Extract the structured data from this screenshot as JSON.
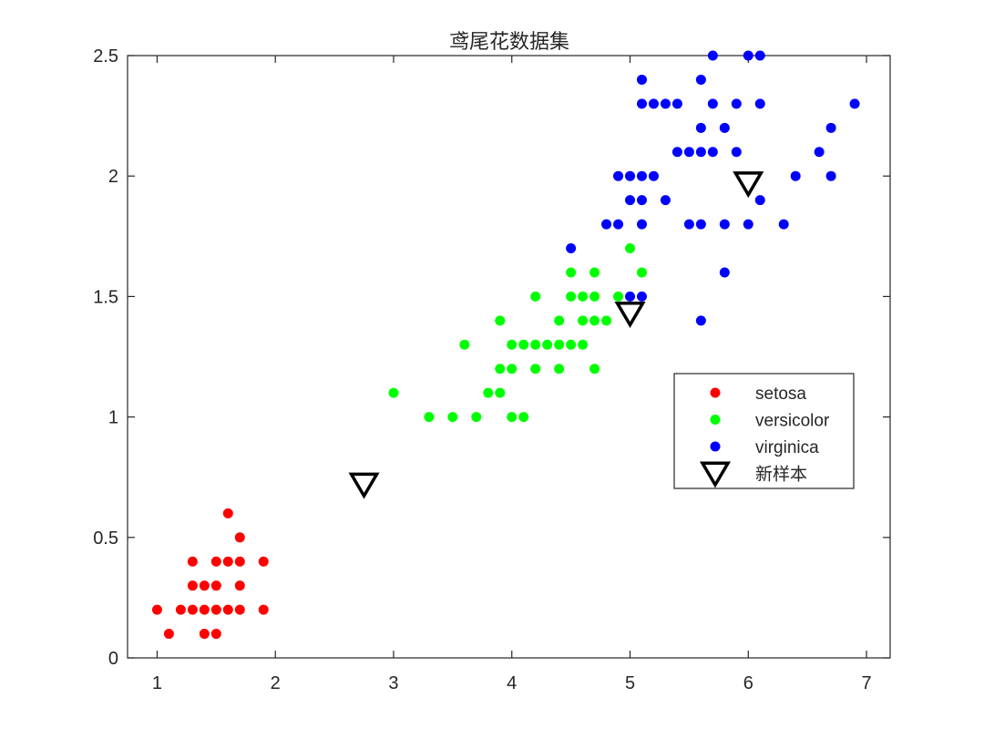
{
  "chart_data": {
    "type": "scatter",
    "title": "鸢尾花数据集",
    "xlabel": "",
    "ylabel": "",
    "xlim": [
      0.75,
      7.2
    ],
    "ylim": [
      0,
      2.5
    ],
    "xticks": [
      1,
      2,
      3,
      4,
      5,
      6,
      7
    ],
    "xtick_labels": [
      "1",
      "2",
      "3",
      "4",
      "5",
      "6",
      "7"
    ],
    "yticks": [
      0,
      0.5,
      1,
      1.5,
      2,
      2.5
    ],
    "ytick_labels": [
      "0",
      "0.5",
      "1",
      "1.5",
      "2",
      "2.5"
    ],
    "grid": false,
    "legend_position": "center-right",
    "series": [
      {
        "name": "setosa",
        "color": "#ff0000",
        "marker": "dot",
        "points": [
          [
            1.0,
            0.2
          ],
          [
            1.1,
            0.1
          ],
          [
            1.2,
            0.2
          ],
          [
            1.3,
            0.2
          ],
          [
            1.3,
            0.3
          ],
          [
            1.3,
            0.4
          ],
          [
            1.4,
            0.1
          ],
          [
            1.4,
            0.2
          ],
          [
            1.4,
            0.3
          ],
          [
            1.5,
            0.1
          ],
          [
            1.5,
            0.2
          ],
          [
            1.5,
            0.3
          ],
          [
            1.5,
            0.4
          ],
          [
            1.6,
            0.2
          ],
          [
            1.6,
            0.4
          ],
          [
            1.6,
            0.6
          ],
          [
            1.7,
            0.2
          ],
          [
            1.7,
            0.3
          ],
          [
            1.7,
            0.4
          ],
          [
            1.7,
            0.5
          ],
          [
            1.9,
            0.2
          ],
          [
            1.9,
            0.4
          ]
        ]
      },
      {
        "name": "versicolor",
        "color": "#00ff00",
        "marker": "dot",
        "points": [
          [
            3.0,
            1.1
          ],
          [
            3.3,
            1.0
          ],
          [
            3.5,
            1.0
          ],
          [
            3.6,
            1.3
          ],
          [
            3.7,
            1.0
          ],
          [
            3.8,
            1.1
          ],
          [
            3.9,
            1.1
          ],
          [
            3.9,
            1.2
          ],
          [
            3.9,
            1.4
          ],
          [
            4.0,
            1.0
          ],
          [
            4.0,
            1.2
          ],
          [
            4.0,
            1.3
          ],
          [
            4.1,
            1.0
          ],
          [
            4.1,
            1.3
          ],
          [
            4.2,
            1.2
          ],
          [
            4.2,
            1.3
          ],
          [
            4.2,
            1.5
          ],
          [
            4.3,
            1.3
          ],
          [
            4.4,
            1.2
          ],
          [
            4.4,
            1.3
          ],
          [
            4.4,
            1.4
          ],
          [
            4.5,
            1.3
          ],
          [
            4.5,
            1.5
          ],
          [
            4.5,
            1.6
          ],
          [
            4.6,
            1.3
          ],
          [
            4.6,
            1.4
          ],
          [
            4.6,
            1.5
          ],
          [
            4.7,
            1.2
          ],
          [
            4.7,
            1.4
          ],
          [
            4.7,
            1.5
          ],
          [
            4.7,
            1.6
          ],
          [
            4.8,
            1.4
          ],
          [
            4.8,
            1.8
          ],
          [
            4.9,
            1.5
          ],
          [
            5.0,
            1.7
          ],
          [
            5.1,
            1.6
          ]
        ]
      },
      {
        "name": "virginica",
        "color": "#0000ff",
        "marker": "dot",
        "points": [
          [
            4.5,
            1.7
          ],
          [
            4.8,
            1.8
          ],
          [
            4.9,
            1.8
          ],
          [
            4.9,
            2.0
          ],
          [
            5.0,
            1.5
          ],
          [
            5.0,
            1.9
          ],
          [
            5.0,
            2.0
          ],
          [
            5.1,
            1.5
          ],
          [
            5.1,
            1.8
          ],
          [
            5.1,
            1.9
          ],
          [
            5.1,
            2.0
          ],
          [
            5.1,
            2.3
          ],
          [
            5.1,
            2.4
          ],
          [
            5.2,
            2.0
          ],
          [
            5.2,
            2.3
          ],
          [
            5.3,
            1.9
          ],
          [
            5.3,
            2.3
          ],
          [
            5.4,
            2.1
          ],
          [
            5.4,
            2.3
          ],
          [
            5.5,
            1.8
          ],
          [
            5.5,
            2.1
          ],
          [
            5.6,
            1.4
          ],
          [
            5.6,
            1.8
          ],
          [
            5.6,
            2.1
          ],
          [
            5.6,
            2.2
          ],
          [
            5.6,
            2.4
          ],
          [
            5.7,
            2.1
          ],
          [
            5.7,
            2.3
          ],
          [
            5.7,
            2.5
          ],
          [
            5.8,
            1.6
          ],
          [
            5.8,
            1.8
          ],
          [
            5.8,
            2.2
          ],
          [
            5.9,
            2.1
          ],
          [
            5.9,
            2.3
          ],
          [
            6.0,
            1.8
          ],
          [
            6.0,
            2.5
          ],
          [
            6.1,
            1.9
          ],
          [
            6.1,
            2.3
          ],
          [
            6.1,
            2.5
          ],
          [
            6.3,
            1.8
          ],
          [
            6.4,
            2.0
          ],
          [
            6.6,
            2.1
          ],
          [
            6.7,
            2.0
          ],
          [
            6.7,
            2.2
          ],
          [
            6.9,
            2.3
          ]
        ]
      },
      {
        "name": "新样本",
        "color": "#000000",
        "marker": "triangle-down",
        "points": [
          [
            2.75,
            0.72
          ],
          [
            5.0,
            1.43
          ],
          [
            6.0,
            1.97
          ]
        ]
      }
    ]
  }
}
